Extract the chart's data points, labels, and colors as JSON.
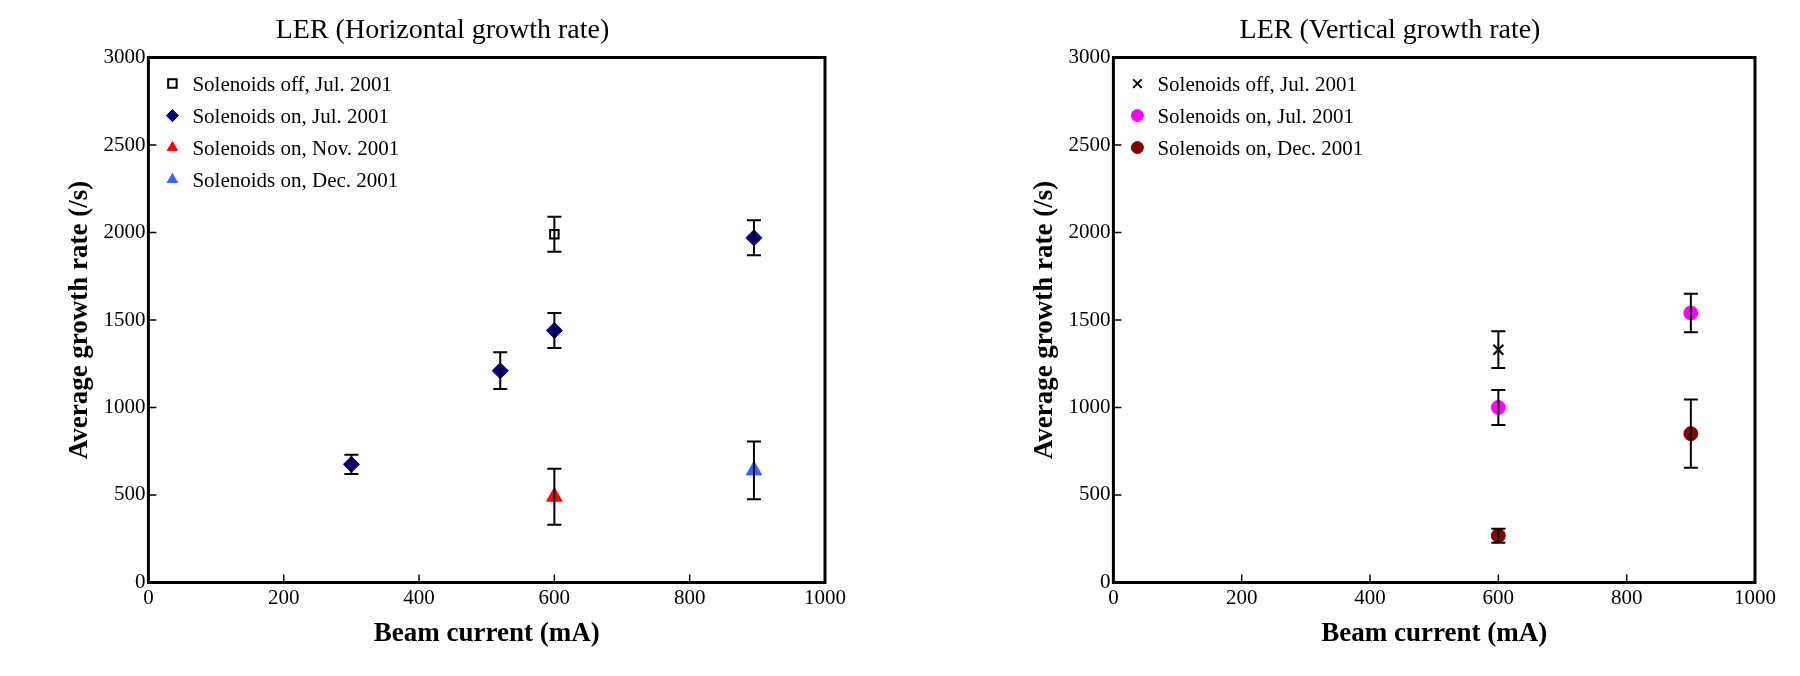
{
  "chart_data": [
    {
      "type": "scatter",
      "title": "LER (Horizontal growth rate)",
      "xlabel": "Beam current (mA)",
      "ylabel": "Average growth rate (/s)",
      "xlim": [
        0,
        1000
      ],
      "xticks": [
        0,
        200,
        400,
        600,
        800,
        1000
      ],
      "ylim": [
        0,
        3000
      ],
      "yticks": [
        0,
        500,
        1000,
        1500,
        2000,
        2500,
        3000
      ],
      "legend": "top left",
      "series": [
        {
          "name": "Solenoids off, Jul. 2001",
          "color": "#000000",
          "marker": "square",
          "x": [
            600
          ],
          "values": [
            1990
          ],
          "errors": [
            100
          ]
        },
        {
          "name": "Solenoids on, Jul. 2001",
          "color": "#000080",
          "marker": "diamond",
          "x": [
            300,
            520,
            600,
            895
          ],
          "values": [
            675,
            1210,
            1440,
            1970
          ],
          "errors": [
            55,
            105,
            100,
            100
          ]
        },
        {
          "name": "Solenoids on, Nov. 2001",
          "color": "#ff0000",
          "marker": "triangle",
          "x": [
            600
          ],
          "values": [
            490
          ],
          "errors": [
            160
          ]
        },
        {
          "name": "Solenoids on, Dec. 2001",
          "color": "#3366ff",
          "marker": "triangle",
          "x": [
            895
          ],
          "values": [
            640
          ],
          "errors": [
            165
          ]
        }
      ]
    },
    {
      "type": "scatter",
      "title": "LER (Vertical growth rate)",
      "xlabel": "Beam current (mA)",
      "ylabel": "Average growth rate (/s)",
      "xlim": [
        0,
        1000
      ],
      "xticks": [
        0,
        200,
        400,
        600,
        800,
        1000
      ],
      "ylim": [
        0,
        3000
      ],
      "yticks": [
        0,
        500,
        1000,
        1500,
        2000,
        2500,
        3000
      ],
      "legend": "top left",
      "series": [
        {
          "name": "Solenoids off, Jul. 2001",
          "color": "#000000",
          "marker": "cross",
          "x": [
            600
          ],
          "values": [
            1330
          ],
          "errors": [
            105
          ]
        },
        {
          "name": "Solenoids on, Jul. 2001",
          "color": "#ff00ff",
          "marker": "circle",
          "x": [
            600,
            900
          ],
          "values": [
            1000,
            1540
          ],
          "errors": [
            100,
            110
          ]
        },
        {
          "name": "Solenoids on, Dec. 2001",
          "color": "#800000",
          "marker": "circle",
          "x": [
            600,
            900
          ],
          "values": [
            267,
            850
          ],
          "errors": [
            40,
            195
          ]
        }
      ]
    }
  ]
}
